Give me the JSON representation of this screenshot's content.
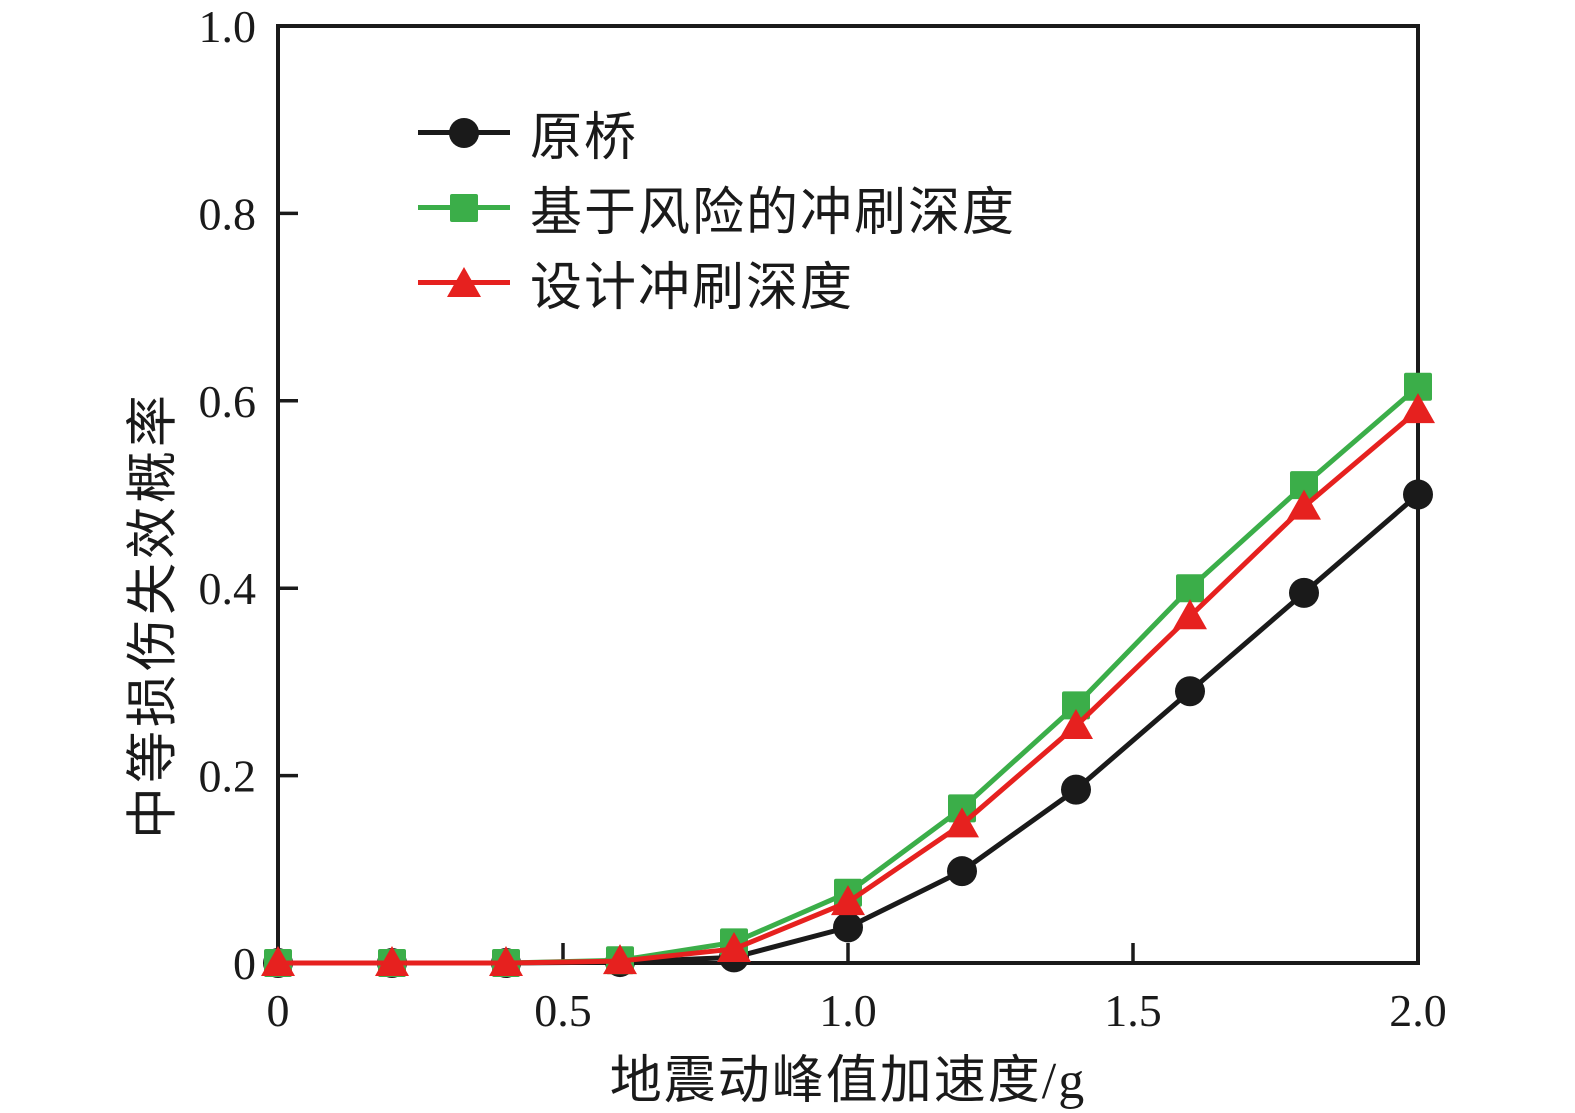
{
  "figure": {
    "background": "#ffffff",
    "axis_color": "#1a1a1a"
  },
  "chart_data": {
    "type": "line",
    "title": "",
    "xlabel": "地震动峰值加速度/g",
    "ylabel": "中等损伤失效概率",
    "xlim": [
      0,
      2.0
    ],
    "ylim": [
      0,
      1.0
    ],
    "grid": false,
    "legend_position": "upper-left-inside",
    "x_ticks": {
      "values": [
        0,
        0.5,
        1.0,
        1.5,
        2.0
      ],
      "labels": [
        "0",
        "0.5",
        "1.0",
        "1.5",
        "2.0"
      ]
    },
    "y_ticks": {
      "values": [
        0,
        0.2,
        0.4,
        0.6,
        0.8,
        1.0
      ],
      "labels": [
        "0",
        "0.2",
        "0.4",
        "0.6",
        "0.8",
        "1.0"
      ]
    },
    "x_tick_marks": [
      0.5,
      1.0,
      1.5
    ],
    "y_tick_marks": [
      0.2,
      0.4,
      0.6,
      0.8
    ],
    "x": [
      0,
      0.2,
      0.4,
      0.6,
      0.8,
      1.0,
      1.2,
      1.4,
      1.6,
      1.8,
      2.0
    ],
    "series": [
      {
        "name": "原桥",
        "marker": "circle",
        "color": "#1a1a1a",
        "values": [
          0,
          0,
          0,
          0.001,
          0.006,
          0.038,
          0.098,
          0.185,
          0.29,
          0.395,
          0.5
        ]
      },
      {
        "name": "基于风险的冲刷深度",
        "marker": "square",
        "color": "#3bae49",
        "values": [
          0,
          0,
          0,
          0.003,
          0.022,
          0.075,
          0.165,
          0.275,
          0.4,
          0.51,
          0.615
        ]
      },
      {
        "name": "设计冲刷深度",
        "marker": "triangle",
        "color": "#e6211f",
        "values": [
          0,
          0,
          0,
          0.002,
          0.015,
          0.065,
          0.148,
          0.253,
          0.37,
          0.487,
          0.59
        ]
      }
    ]
  }
}
